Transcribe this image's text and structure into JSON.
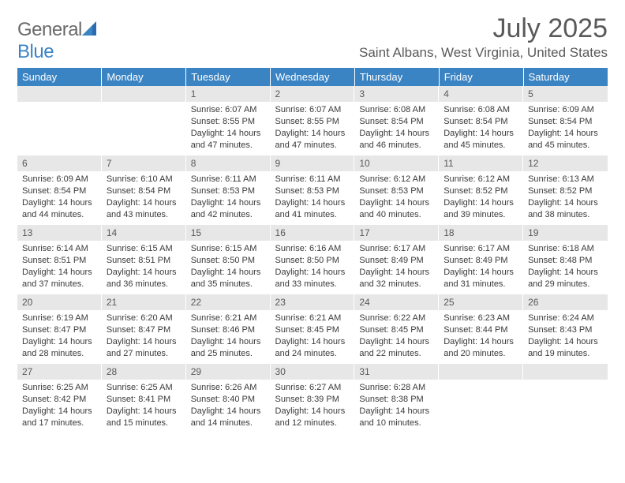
{
  "brand": {
    "general": "General",
    "blue": "Blue"
  },
  "title": "July 2025",
  "location": "Saint Albans, West Virginia, United States",
  "header_color": "#3b84c4",
  "daynum_bg": "#e7e7e7",
  "text_color": "#595959",
  "weekdays": [
    "Sunday",
    "Monday",
    "Tuesday",
    "Wednesday",
    "Thursday",
    "Friday",
    "Saturday"
  ],
  "leading_blanks": 2,
  "days": [
    {
      "n": "1",
      "sr": "Sunrise: 6:07 AM",
      "ss": "Sunset: 8:55 PM",
      "dl1": "Daylight: 14 hours",
      "dl2": "and 47 minutes."
    },
    {
      "n": "2",
      "sr": "Sunrise: 6:07 AM",
      "ss": "Sunset: 8:55 PM",
      "dl1": "Daylight: 14 hours",
      "dl2": "and 47 minutes."
    },
    {
      "n": "3",
      "sr": "Sunrise: 6:08 AM",
      "ss": "Sunset: 8:54 PM",
      "dl1": "Daylight: 14 hours",
      "dl2": "and 46 minutes."
    },
    {
      "n": "4",
      "sr": "Sunrise: 6:08 AM",
      "ss": "Sunset: 8:54 PM",
      "dl1": "Daylight: 14 hours",
      "dl2": "and 45 minutes."
    },
    {
      "n": "5",
      "sr": "Sunrise: 6:09 AM",
      "ss": "Sunset: 8:54 PM",
      "dl1": "Daylight: 14 hours",
      "dl2": "and 45 minutes."
    },
    {
      "n": "6",
      "sr": "Sunrise: 6:09 AM",
      "ss": "Sunset: 8:54 PM",
      "dl1": "Daylight: 14 hours",
      "dl2": "and 44 minutes."
    },
    {
      "n": "7",
      "sr": "Sunrise: 6:10 AM",
      "ss": "Sunset: 8:54 PM",
      "dl1": "Daylight: 14 hours",
      "dl2": "and 43 minutes."
    },
    {
      "n": "8",
      "sr": "Sunrise: 6:11 AM",
      "ss": "Sunset: 8:53 PM",
      "dl1": "Daylight: 14 hours",
      "dl2": "and 42 minutes."
    },
    {
      "n": "9",
      "sr": "Sunrise: 6:11 AM",
      "ss": "Sunset: 8:53 PM",
      "dl1": "Daylight: 14 hours",
      "dl2": "and 41 minutes."
    },
    {
      "n": "10",
      "sr": "Sunrise: 6:12 AM",
      "ss": "Sunset: 8:53 PM",
      "dl1": "Daylight: 14 hours",
      "dl2": "and 40 minutes."
    },
    {
      "n": "11",
      "sr": "Sunrise: 6:12 AM",
      "ss": "Sunset: 8:52 PM",
      "dl1": "Daylight: 14 hours",
      "dl2": "and 39 minutes."
    },
    {
      "n": "12",
      "sr": "Sunrise: 6:13 AM",
      "ss": "Sunset: 8:52 PM",
      "dl1": "Daylight: 14 hours",
      "dl2": "and 38 minutes."
    },
    {
      "n": "13",
      "sr": "Sunrise: 6:14 AM",
      "ss": "Sunset: 8:51 PM",
      "dl1": "Daylight: 14 hours",
      "dl2": "and 37 minutes."
    },
    {
      "n": "14",
      "sr": "Sunrise: 6:15 AM",
      "ss": "Sunset: 8:51 PM",
      "dl1": "Daylight: 14 hours",
      "dl2": "and 36 minutes."
    },
    {
      "n": "15",
      "sr": "Sunrise: 6:15 AM",
      "ss": "Sunset: 8:50 PM",
      "dl1": "Daylight: 14 hours",
      "dl2": "and 35 minutes."
    },
    {
      "n": "16",
      "sr": "Sunrise: 6:16 AM",
      "ss": "Sunset: 8:50 PM",
      "dl1": "Daylight: 14 hours",
      "dl2": "and 33 minutes."
    },
    {
      "n": "17",
      "sr": "Sunrise: 6:17 AM",
      "ss": "Sunset: 8:49 PM",
      "dl1": "Daylight: 14 hours",
      "dl2": "and 32 minutes."
    },
    {
      "n": "18",
      "sr": "Sunrise: 6:17 AM",
      "ss": "Sunset: 8:49 PM",
      "dl1": "Daylight: 14 hours",
      "dl2": "and 31 minutes."
    },
    {
      "n": "19",
      "sr": "Sunrise: 6:18 AM",
      "ss": "Sunset: 8:48 PM",
      "dl1": "Daylight: 14 hours",
      "dl2": "and 29 minutes."
    },
    {
      "n": "20",
      "sr": "Sunrise: 6:19 AM",
      "ss": "Sunset: 8:47 PM",
      "dl1": "Daylight: 14 hours",
      "dl2": "and 28 minutes."
    },
    {
      "n": "21",
      "sr": "Sunrise: 6:20 AM",
      "ss": "Sunset: 8:47 PM",
      "dl1": "Daylight: 14 hours",
      "dl2": "and 27 minutes."
    },
    {
      "n": "22",
      "sr": "Sunrise: 6:21 AM",
      "ss": "Sunset: 8:46 PM",
      "dl1": "Daylight: 14 hours",
      "dl2": "and 25 minutes."
    },
    {
      "n": "23",
      "sr": "Sunrise: 6:21 AM",
      "ss": "Sunset: 8:45 PM",
      "dl1": "Daylight: 14 hours",
      "dl2": "and 24 minutes."
    },
    {
      "n": "24",
      "sr": "Sunrise: 6:22 AM",
      "ss": "Sunset: 8:45 PM",
      "dl1": "Daylight: 14 hours",
      "dl2": "and 22 minutes."
    },
    {
      "n": "25",
      "sr": "Sunrise: 6:23 AM",
      "ss": "Sunset: 8:44 PM",
      "dl1": "Daylight: 14 hours",
      "dl2": "and 20 minutes."
    },
    {
      "n": "26",
      "sr": "Sunrise: 6:24 AM",
      "ss": "Sunset: 8:43 PM",
      "dl1": "Daylight: 14 hours",
      "dl2": "and 19 minutes."
    },
    {
      "n": "27",
      "sr": "Sunrise: 6:25 AM",
      "ss": "Sunset: 8:42 PM",
      "dl1": "Daylight: 14 hours",
      "dl2": "and 17 minutes."
    },
    {
      "n": "28",
      "sr": "Sunrise: 6:25 AM",
      "ss": "Sunset: 8:41 PM",
      "dl1": "Daylight: 14 hours",
      "dl2": "and 15 minutes."
    },
    {
      "n": "29",
      "sr": "Sunrise: 6:26 AM",
      "ss": "Sunset: 8:40 PM",
      "dl1": "Daylight: 14 hours",
      "dl2": "and 14 minutes."
    },
    {
      "n": "30",
      "sr": "Sunrise: 6:27 AM",
      "ss": "Sunset: 8:39 PM",
      "dl1": "Daylight: 14 hours",
      "dl2": "and 12 minutes."
    },
    {
      "n": "31",
      "sr": "Sunrise: 6:28 AM",
      "ss": "Sunset: 8:38 PM",
      "dl1": "Daylight: 14 hours",
      "dl2": "and 10 minutes."
    }
  ]
}
